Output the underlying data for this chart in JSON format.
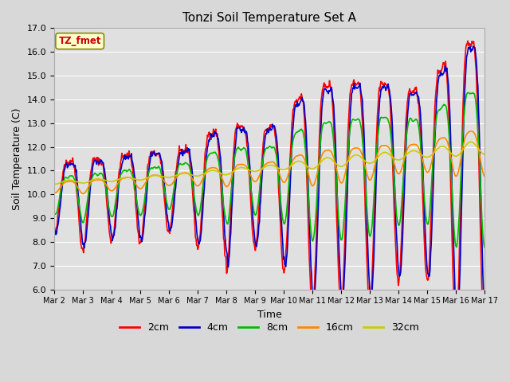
{
  "title": "Tonzi Soil Temperature Set A",
  "xlabel": "Time",
  "ylabel": "Soil Temperature (C)",
  "ylim": [
    6.0,
    17.0
  ],
  "yticks": [
    6.0,
    7.0,
    8.0,
    9.0,
    10.0,
    11.0,
    12.0,
    13.0,
    14.0,
    15.0,
    16.0,
    17.0
  ],
  "xtick_labels": [
    "Mar 2",
    "Mar 3",
    "Mar 4",
    "Mar 5",
    "Mar 6",
    "Mar 7",
    "Mar 8",
    "Mar 9",
    "Mar 10",
    "Mar 11",
    "Mar 12",
    "Mar 13",
    "Mar 14",
    "Mar 15",
    "Mar 16",
    "Mar 17"
  ],
  "annotation_text": "TZ_fmet",
  "annotation_color": "#cc0000",
  "annotation_bg": "#ffffcc",
  "annotation_border": "#888800",
  "series_colors": [
    "#ff0000",
    "#0000cc",
    "#00bb00",
    "#ff8800",
    "#cccc00"
  ],
  "series_labels": [
    "2cm",
    "4cm",
    "8cm",
    "16cm",
    "32cm"
  ],
  "line_width": 1.2,
  "fig_facecolor": "#d8d8d8",
  "ax_facecolor": "#e0e0e0",
  "grid_color": "#ffffff"
}
